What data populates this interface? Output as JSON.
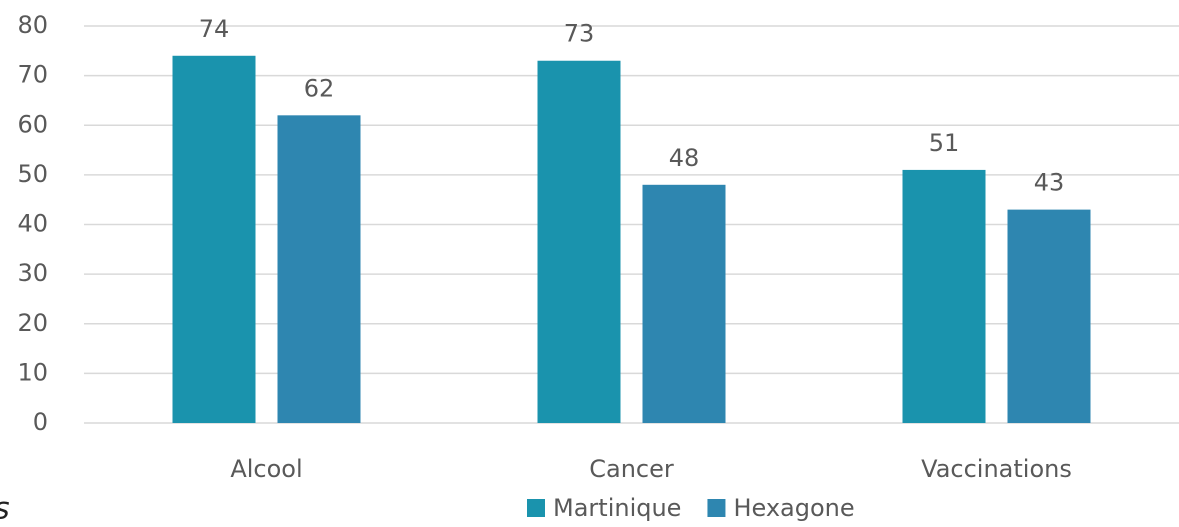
{
  "chart_data": {
    "type": "bar",
    "categories": [
      "Alcool",
      "Cancer",
      "Vaccinations"
    ],
    "series": [
      {
        "name": "Martinique",
        "color": "#1a93ad",
        "values": [
          74,
          73,
          51
        ]
      },
      {
        "name": "Hexagone",
        "color": "#2e86b0",
        "values": [
          62,
          48,
          43
        ]
      }
    ],
    "ylim": [
      0,
      80
    ],
    "yticks": [
      0,
      10,
      20,
      30,
      40,
      50,
      60,
      70,
      80
    ],
    "grid": true,
    "legend": "bottom",
    "annotation": "s"
  }
}
